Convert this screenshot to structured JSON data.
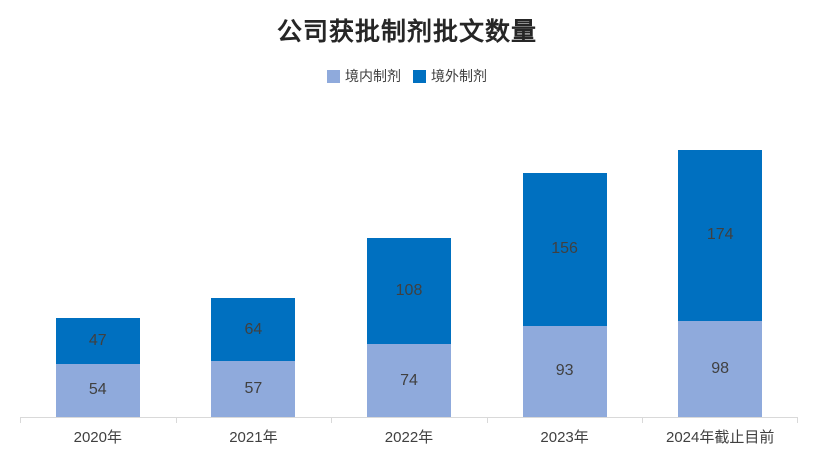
{
  "chart_data": {
    "type": "bar",
    "stacked": true,
    "title": "公司获批制剂批文数量",
    "categories": [
      "2020年",
      "2021年",
      "2022年",
      "2023年",
      "2024年截止目前"
    ],
    "series": [
      {
        "name": "境内制剂",
        "color": "#8FAADC",
        "values": [
          54,
          57,
          74,
          93,
          98
        ]
      },
      {
        "name": "境外制剂",
        "color": "#0070C0",
        "values": [
          47,
          64,
          108,
          156,
          174
        ]
      }
    ],
    "totals": [
      101,
      121,
      182,
      249,
      272
    ],
    "legend_position": "top-center",
    "grid": false,
    "y_axis_visible": false,
    "ylim": [
      0,
      280
    ],
    "colors": {
      "title": "#262626",
      "data_label": "#404040",
      "axis_label": "#404040",
      "legend_label": "#404040",
      "axis_line": "#d9d9d9"
    }
  }
}
